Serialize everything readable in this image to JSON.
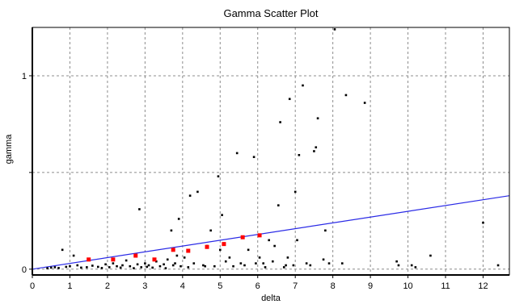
{
  "chart_data": {
    "type": "scatter",
    "title": "Gamma Scatter Plot",
    "xlabel": "delta",
    "ylabel": "gamma",
    "xlim": [
      0,
      12.7
    ],
    "ylim": [
      -0.03,
      1.25
    ],
    "x_ticks": [
      0,
      1,
      2,
      3,
      4,
      5,
      6,
      7,
      8,
      9,
      10,
      11,
      12
    ],
    "x_tick_labels": [
      "0",
      "1",
      "2",
      "3",
      "4",
      "5",
      "6",
      "7",
      "8",
      "9",
      "10",
      "11",
      "12"
    ],
    "y_ticks": [
      0,
      0.5,
      1
    ],
    "y_tick_labels": [
      "0",
      "",
      "1"
    ],
    "grid": true,
    "series": [
      {
        "marker": "small-square",
        "color": "#000000",
        "points": [
          [
            0.4,
            0.005
          ],
          [
            0.5,
            0.008
          ],
          [
            0.6,
            0.01
          ],
          [
            0.7,
            0.006
          ],
          [
            0.8,
            0.1
          ],
          [
            0.9,
            0.012
          ],
          [
            1.0,
            0.015
          ],
          [
            1.1,
            0.07
          ],
          [
            1.2,
            0.02
          ],
          [
            1.3,
            0.008
          ],
          [
            1.45,
            0.01
          ],
          [
            1.6,
            0.018
          ],
          [
            1.75,
            0.012
          ],
          [
            1.85,
            0.006
          ],
          [
            1.95,
            0.025
          ],
          [
            2.05,
            0.01
          ],
          [
            2.15,
            0.03
          ],
          [
            2.25,
            0.015
          ],
          [
            2.35,
            0.008
          ],
          [
            2.4,
            0.02
          ],
          [
            2.5,
            0.045
          ],
          [
            2.6,
            0.015
          ],
          [
            2.7,
            0.005
          ],
          [
            2.8,
            0.025
          ],
          [
            2.85,
            0.31
          ],
          [
            2.9,
            0.01
          ],
          [
            3.0,
            0.03
          ],
          [
            3.05,
            0.012
          ],
          [
            3.1,
            0.02
          ],
          [
            3.2,
            0.008
          ],
          [
            3.3,
            0.04
          ],
          [
            3.4,
            0.015
          ],
          [
            3.5,
            0.025
          ],
          [
            3.55,
            0.005
          ],
          [
            3.6,
            0.05
          ],
          [
            3.7,
            0.2
          ],
          [
            3.75,
            0.02
          ],
          [
            3.8,
            0.03
          ],
          [
            3.85,
            0.07
          ],
          [
            3.9,
            0.26
          ],
          [
            3.95,
            0.015
          ],
          [
            4.05,
            0.06
          ],
          [
            4.15,
            0.01
          ],
          [
            4.2,
            0.38
          ],
          [
            4.3,
            0.03
          ],
          [
            4.4,
            0.4
          ],
          [
            4.55,
            0.02
          ],
          [
            4.6,
            0.015
          ],
          [
            4.65,
            0.12
          ],
          [
            4.75,
            0.2
          ],
          [
            4.85,
            0.015
          ],
          [
            4.95,
            0.48
          ],
          [
            5.0,
            0.1
          ],
          [
            5.05,
            0.28
          ],
          [
            5.15,
            0.04
          ],
          [
            5.25,
            0.06
          ],
          [
            5.35,
            0.015
          ],
          [
            5.45,
            0.6
          ],
          [
            5.55,
            0.03
          ],
          [
            5.65,
            0.02
          ],
          [
            5.75,
            0.1
          ],
          [
            5.9,
            0.58
          ],
          [
            5.95,
            0.03
          ],
          [
            6.05,
            0.06
          ],
          [
            6.15,
            0.03
          ],
          [
            6.2,
            0.01
          ],
          [
            6.3,
            0.15
          ],
          [
            6.4,
            0.04
          ],
          [
            6.45,
            0.12
          ],
          [
            6.55,
            0.33
          ],
          [
            6.6,
            0.76
          ],
          [
            6.7,
            0.01
          ],
          [
            6.75,
            0.02
          ],
          [
            6.8,
            0.06
          ],
          [
            6.85,
            0.88
          ],
          [
            6.95,
            0.02
          ],
          [
            7.0,
            0.4
          ],
          [
            7.05,
            0.15
          ],
          [
            7.1,
            0.59
          ],
          [
            7.2,
            0.95
          ],
          [
            7.3,
            0.03
          ],
          [
            7.4,
            0.02
          ],
          [
            7.5,
            0.61
          ],
          [
            7.55,
            0.63
          ],
          [
            7.6,
            0.78
          ],
          [
            7.75,
            0.05
          ],
          [
            7.8,
            0.2
          ],
          [
            7.9,
            0.03
          ],
          [
            8.05,
            1.24
          ],
          [
            8.25,
            0.03
          ],
          [
            8.35,
            0.9
          ],
          [
            8.85,
            0.86
          ],
          [
            9.7,
            0.04
          ],
          [
            9.75,
            0.02
          ],
          [
            10.1,
            0.02
          ],
          [
            10.2,
            0.01
          ],
          [
            10.6,
            0.07
          ],
          [
            12.0,
            0.24
          ],
          [
            12.4,
            0.02
          ]
        ]
      },
      {
        "marker": "square",
        "color": "#ff0000",
        "points": [
          [
            1.5,
            0.05
          ],
          [
            2.15,
            0.05
          ],
          [
            2.75,
            0.07
          ],
          [
            3.25,
            0.05
          ],
          [
            3.75,
            0.1
          ],
          [
            4.15,
            0.095
          ],
          [
            4.65,
            0.115
          ],
          [
            5.1,
            0.13
          ],
          [
            5.6,
            0.165
          ],
          [
            6.05,
            0.175
          ]
        ]
      }
    ],
    "fit_line": {
      "color": "#2a2ae6",
      "points": [
        [
          0,
          0.0
        ],
        [
          12.7,
          0.38
        ]
      ]
    }
  }
}
